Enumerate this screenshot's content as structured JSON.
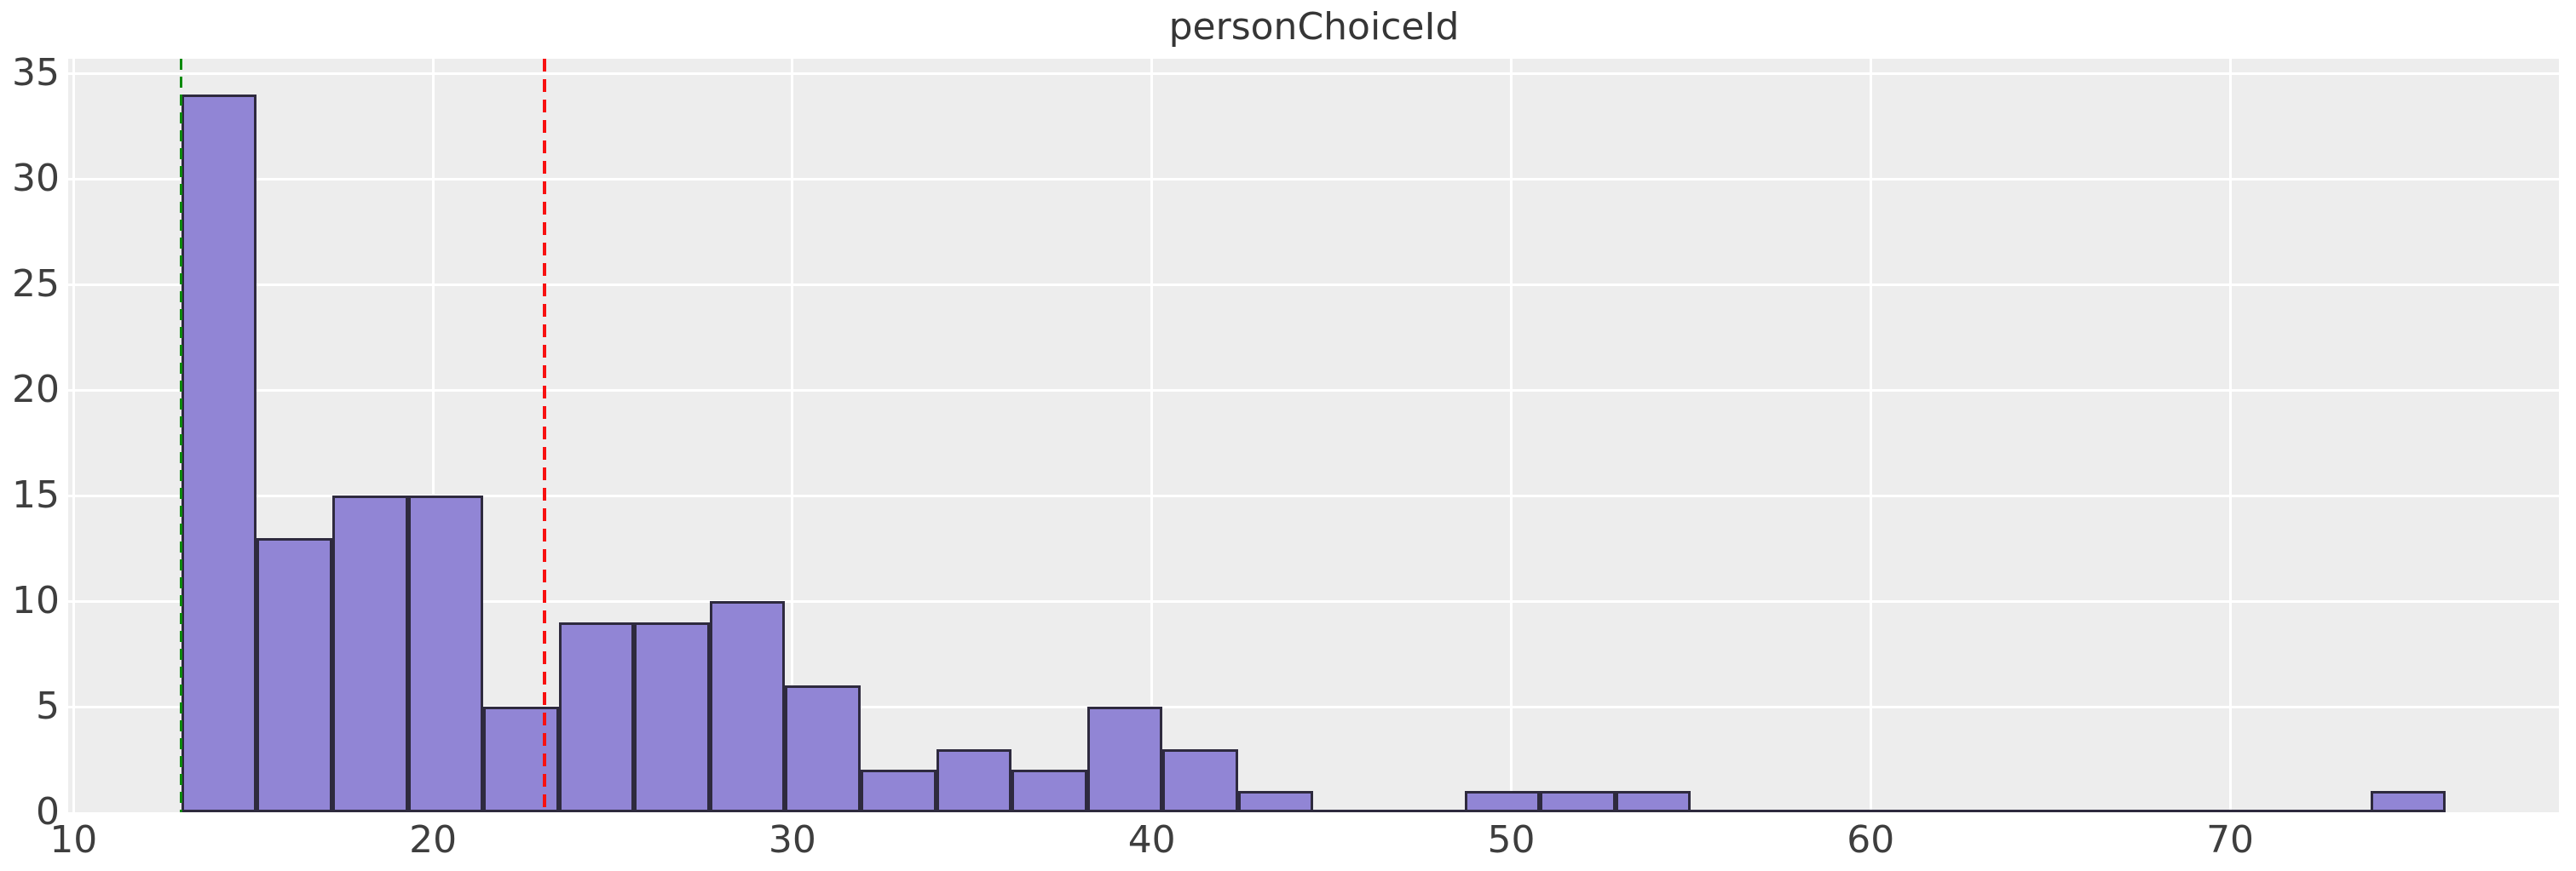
{
  "title": "personChoiceId",
  "chart_data": {
    "type": "bar",
    "kind": "histogram",
    "title": "personChoiceId",
    "xlabel": "",
    "ylabel": "",
    "bin_width": 2.1,
    "bin_edges": [
      13.0,
      15.1,
      17.2,
      19.3,
      21.4,
      23.5,
      25.6,
      27.7,
      29.8,
      31.9,
      34.0,
      36.1,
      38.2,
      40.3,
      42.4,
      44.5,
      46.6,
      48.7,
      50.8,
      52.9,
      55.0,
      57.1,
      59.2,
      61.3,
      63.4,
      65.5,
      67.6,
      69.7,
      71.8,
      73.9,
      76.0
    ],
    "counts": [
      34,
      13,
      15,
      15,
      5,
      9,
      9,
      10,
      6,
      2,
      3,
      2,
      5,
      3,
      1,
      0,
      0,
      1,
      1,
      1,
      0,
      0,
      0,
      0,
      0,
      0,
      0,
      0,
      0,
      1
    ],
    "x_ticks": [
      10,
      20,
      30,
      40,
      50,
      60,
      70
    ],
    "y_ticks": [
      0,
      5,
      10,
      15,
      20,
      25,
      30,
      35
    ],
    "xlim": [
      9.85,
      79.15
    ],
    "ylim": [
      0,
      35.7
    ],
    "grid": true,
    "legend": false,
    "annotations": {
      "min_line": {
        "x": 13.0,
        "color": "#0b8a0b",
        "style": "dashed"
      },
      "mean_line": {
        "x": 23.1,
        "color": "#f81111",
        "style": "dashed"
      }
    },
    "colors": {
      "bar_fill": "#9185d5",
      "bar_edge": "#2e2a3e",
      "plot_background": "#ededed",
      "gridline": "#ffffff",
      "tick_text": "#3e3e3e",
      "title_text": "#363636"
    }
  }
}
